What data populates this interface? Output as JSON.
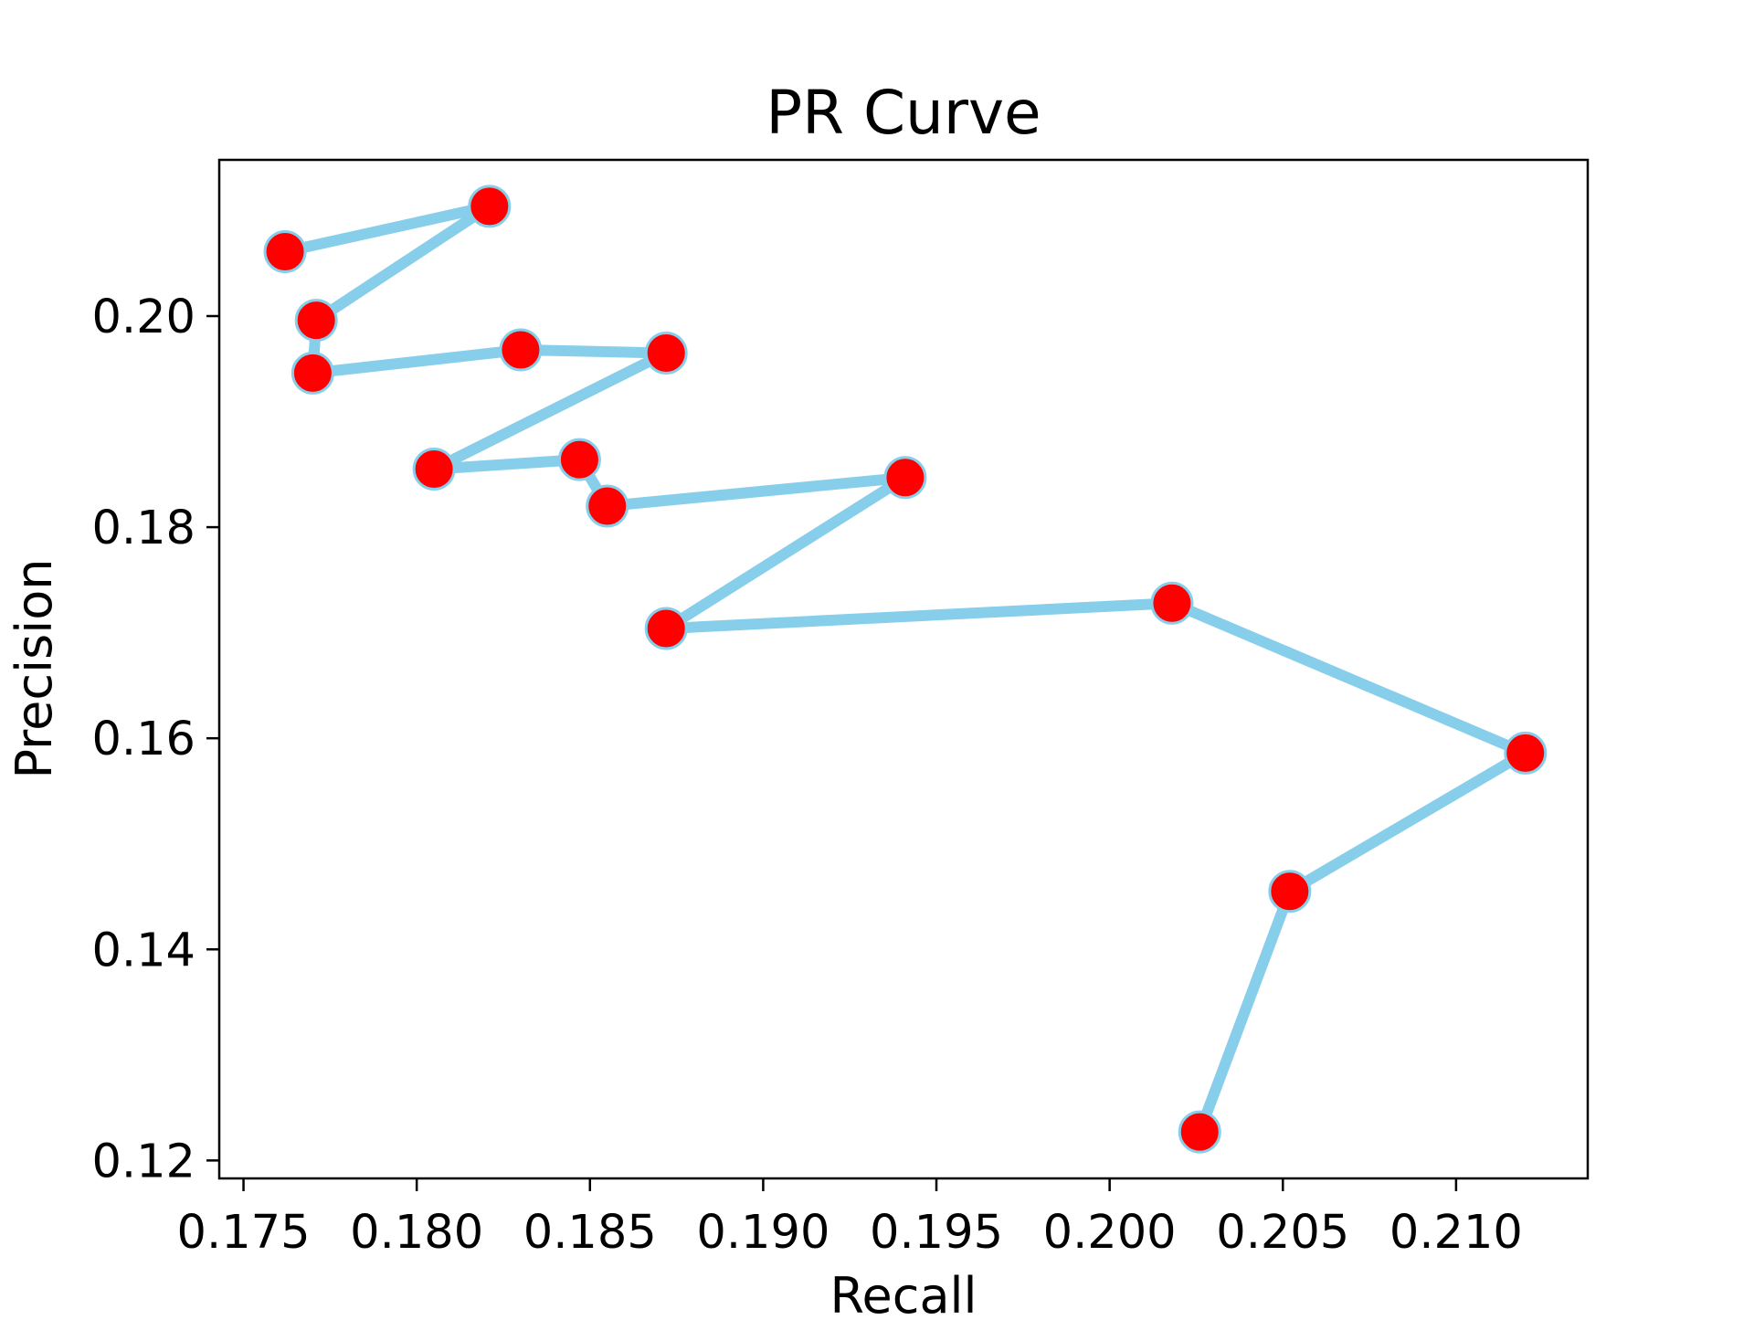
{
  "chart_data": {
    "type": "line",
    "title": "PR Curve",
    "xlabel": "Recall",
    "ylabel": "Precision",
    "xlim": [
      0.1743,
      0.2138
    ],
    "ylim": [
      0.1183,
      0.2148
    ],
    "xticks": [
      0.175,
      0.18,
      0.185,
      0.19,
      0.195,
      0.2,
      0.205,
      0.21
    ],
    "xtick_labels": [
      "0.175",
      "0.180",
      "0.185",
      "0.190",
      "0.195",
      "0.200",
      "0.205",
      "0.210"
    ],
    "yticks": [
      0.12,
      0.14,
      0.16,
      0.18,
      0.2
    ],
    "ytick_labels": [
      "0.12",
      "0.14",
      "0.16",
      "0.18",
      "0.20"
    ],
    "grid": false,
    "line_color": "#87ceeb",
    "marker_color": "#ff0000",
    "marker_edge_color": "#87ceeb",
    "series": [
      {
        "x": [
          0.2026,
          0.2052,
          0.212,
          0.2018,
          0.1872,
          0.1941,
          0.1855,
          0.1847,
          0.1805,
          0.1872,
          0.183,
          0.177,
          0.1771,
          0.1821,
          0.1762
        ],
        "y": [
          0.1227,
          0.1455,
          0.1586,
          0.1728,
          0.1704,
          0.1847,
          0.182,
          0.1864,
          0.1855,
          0.1965,
          0.1968,
          0.1946,
          0.1996,
          0.2104,
          0.2061
        ]
      }
    ]
  }
}
